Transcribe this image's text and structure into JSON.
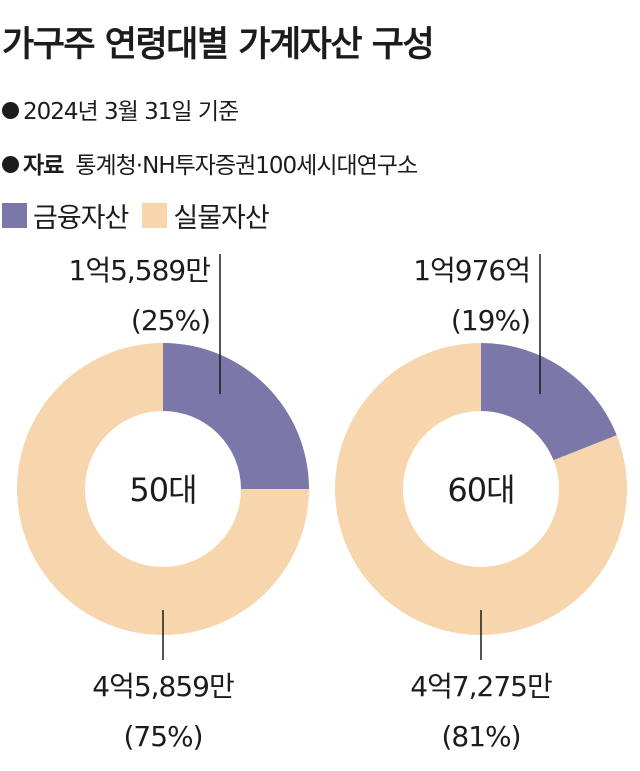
{
  "title": "가구주 연령대별 가계자산 구성",
  "date_note": "2024년 3월 31일 기준",
  "source": {
    "label": "자료",
    "text": "통계청·NH투자증권100세시대연구소"
  },
  "colors": {
    "financial": "#7b77a8",
    "real": "#f7d6ad",
    "leader": "#1c1c1c"
  },
  "chart_data": [
    {
      "type": "pie",
      "center_label": "50대",
      "legend": [
        "금융자산",
        "실물자산"
      ],
      "slices": [
        {
          "name": "금융자산",
          "value": 25,
          "amount": "1억5,589만",
          "percent_label": "(25%)"
        },
        {
          "name": "실물자산",
          "value": 75,
          "amount": "4억5,859만",
          "percent_label": "(75%)"
        }
      ]
    },
    {
      "type": "pie",
      "center_label": "60대",
      "legend": [
        "금융자산",
        "실물자산"
      ],
      "slices": [
        {
          "name": "금융자산",
          "value": 19,
          "amount": "1억976억",
          "percent_label": "(19%)"
        },
        {
          "name": "실물자산",
          "value": 81,
          "amount": "4억7,275만",
          "percent_label": "(81%)"
        }
      ]
    }
  ]
}
